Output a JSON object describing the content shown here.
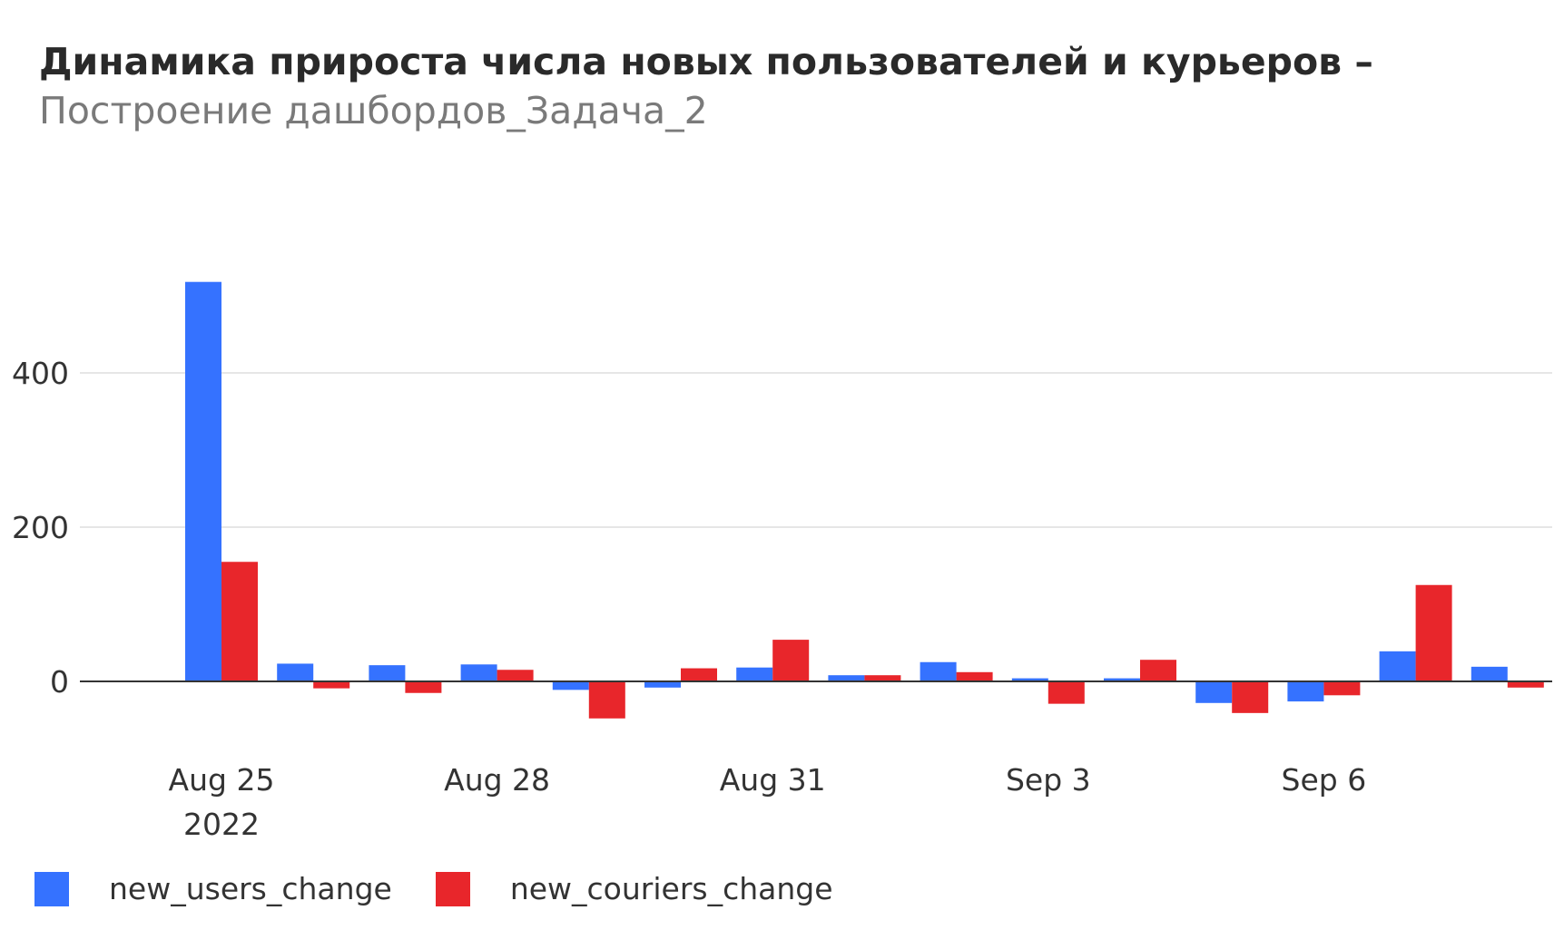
{
  "header": {
    "title": "Динамика прироста числа новых пользователей и курьеров –",
    "subtitle": "Построение дашбордов_Задача_2"
  },
  "colors": {
    "users": "#3572ff",
    "couriers": "#e8262b",
    "grid": "#e6e6e6",
    "zero_line": "#333333"
  },
  "chart_data": {
    "type": "bar",
    "title": "Динамика прироста числа новых пользователей и курьеров –",
    "subtitle": "Построение дашбордов_Задача_2",
    "xlabel": "",
    "ylabel": "",
    "categories": [
      "2022-08-25",
      "2022-08-26",
      "2022-08-27",
      "2022-08-28",
      "2022-08-29",
      "2022-08-30",
      "2022-08-31",
      "2022-09-01",
      "2022-09-02",
      "2022-09-03",
      "2022-09-04",
      "2022-09-05",
      "2022-09-06",
      "2022-09-07",
      "2022-09-08"
    ],
    "series": [
      {
        "name": "new_users_change",
        "values": [
          518,
          23,
          21,
          22,
          -11,
          -8,
          18,
          8,
          25,
          4,
          4,
          -28,
          -26,
          39,
          19
        ]
      },
      {
        "name": "new_couriers_change",
        "values": [
          155,
          -9,
          -15,
          15,
          -48,
          17,
          54,
          8,
          12,
          -29,
          28,
          -41,
          -18,
          125,
          -8
        ]
      }
    ],
    "ylim": [
      -60,
      540
    ],
    "yticks": [
      0,
      200,
      400
    ],
    "ytick_labels": [
      "0",
      "200",
      "400"
    ],
    "xticks": [
      {
        "label": "Aug 25",
        "sublabel": "2022",
        "index": 0
      },
      {
        "label": "Aug 28",
        "sublabel": "",
        "index": 3
      },
      {
        "label": "Aug 31",
        "sublabel": "",
        "index": 6
      },
      {
        "label": "Sep 3",
        "sublabel": "",
        "index": 9
      },
      {
        "label": "Sep 6",
        "sublabel": "",
        "index": 12
      }
    ],
    "grid": true,
    "legend_position": "bottom-left"
  }
}
